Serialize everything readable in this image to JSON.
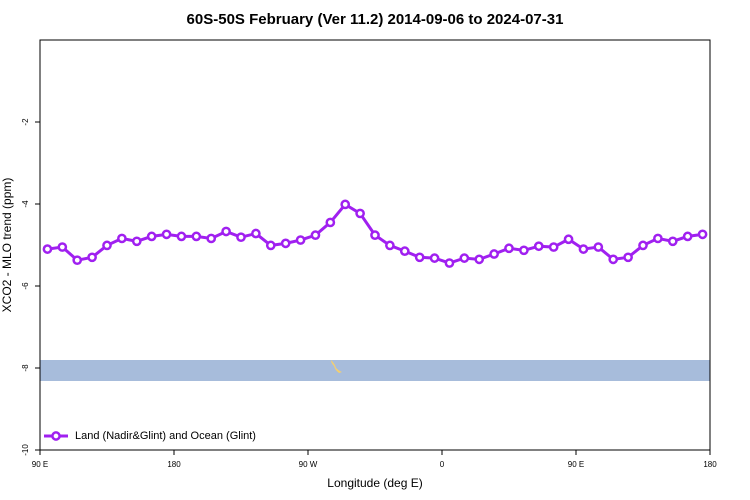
{
  "chart_data": {
    "type": "line",
    "title": "60S-50S February (Ver 11.2)   2014-09-06 to 2024-07-31",
    "xlabel": "Longitude (deg E)",
    "ylabel": "XCO2 - MLO trend (ppm)",
    "xlim": [
      90,
      540
    ],
    "ylim": [
      -10,
      0
    ],
    "xticks": [
      {
        "value": 90,
        "label": "90 E"
      },
      180,
      {
        "value": 270,
        "label": "90 W"
      },
      {
        "value": 360,
        "label": "0"
      },
      {
        "value": 450,
        "label": "90 E"
      },
      180
    ],
    "yticks": [
      -10,
      -8,
      -6,
      -4,
      -2
    ],
    "legend": "bottom-left",
    "x": [
      95,
      105,
      115,
      125,
      135,
      145,
      155,
      165,
      175,
      185,
      195,
      205,
      215,
      225,
      235,
      245,
      255,
      265,
      275,
      285,
      295,
      305,
      315,
      325,
      335,
      345,
      355,
      365,
      375,
      385,
      395,
      405,
      415,
      425,
      435,
      445,
      455,
      465,
      475,
      485,
      495,
      505,
      515,
      525,
      535
    ],
    "series": [
      {
        "name": "Land (Nadir&Glint) and Ocean (Glint)",
        "color": "#a020f0",
        "values": [
          -5.1,
          -5.05,
          -5.37,
          -5.3,
          -5.01,
          -4.84,
          -4.91,
          -4.79,
          -4.74,
          -4.79,
          -4.79,
          -4.84,
          -4.67,
          -4.81,
          -4.72,
          -5.01,
          -4.96,
          -4.88,
          -4.76,
          -4.45,
          -4.01,
          -4.23,
          -4.76,
          -5.01,
          -5.15,
          -5.3,
          -5.32,
          -5.44,
          -5.32,
          -5.35,
          -5.22,
          -5.08,
          -5.13,
          -5.03,
          -5.05,
          -4.86,
          -5.1,
          -5.05,
          -5.35,
          -5.3,
          -5.01,
          -4.84,
          -4.91,
          -4.79,
          -4.74
        ]
      }
    ]
  }
}
